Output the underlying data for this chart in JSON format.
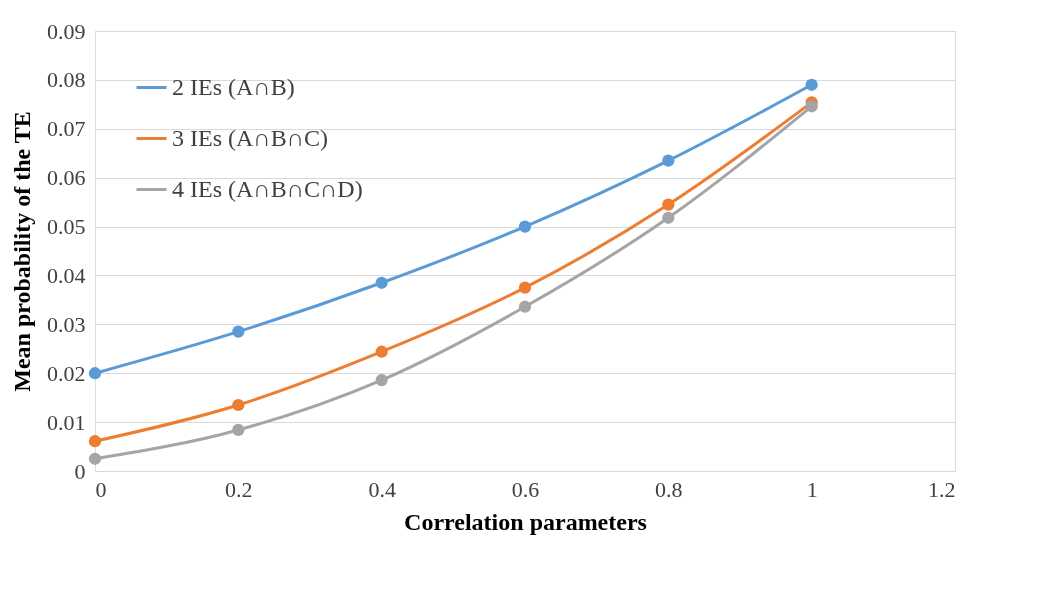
{
  "chart_data": {
    "type": "line",
    "xlabel": "Correlation parameters",
    "ylabel": "Mean probability of the TE",
    "x": [
      0,
      0.2,
      0.4,
      0.6,
      0.8,
      1
    ],
    "series": [
      {
        "name": "2 IEs (A∩B)",
        "color": "#5b9bd5",
        "values": [
          0.02,
          0.0285,
          0.0385,
          0.05,
          0.0635,
          0.079
        ]
      },
      {
        "name": "3 IEs (A∩B∩C)",
        "color": "#ed7d31",
        "values": [
          0.0061,
          0.0135,
          0.0244,
          0.0375,
          0.0545,
          0.0754
        ]
      },
      {
        "name": "4 IEs (A∩B∩C∩D)",
        "color": "#a5a5a5",
        "values": [
          0.0025,
          0.0084,
          0.0186,
          0.0336,
          0.0518,
          0.0746
        ]
      }
    ],
    "xlim": [
      0,
      1.2
    ],
    "xticks": [
      0,
      0.2,
      0.4,
      0.6,
      0.8,
      1,
      1.2
    ],
    "ylim": [
      0,
      0.09
    ],
    "yticks": [
      0,
      0.01,
      0.02,
      0.03,
      0.04,
      0.05,
      0.06,
      0.07,
      0.08,
      0.09
    ],
    "grid": "y",
    "legend": "top left",
    "marker": "circle",
    "line_style": "solid"
  }
}
